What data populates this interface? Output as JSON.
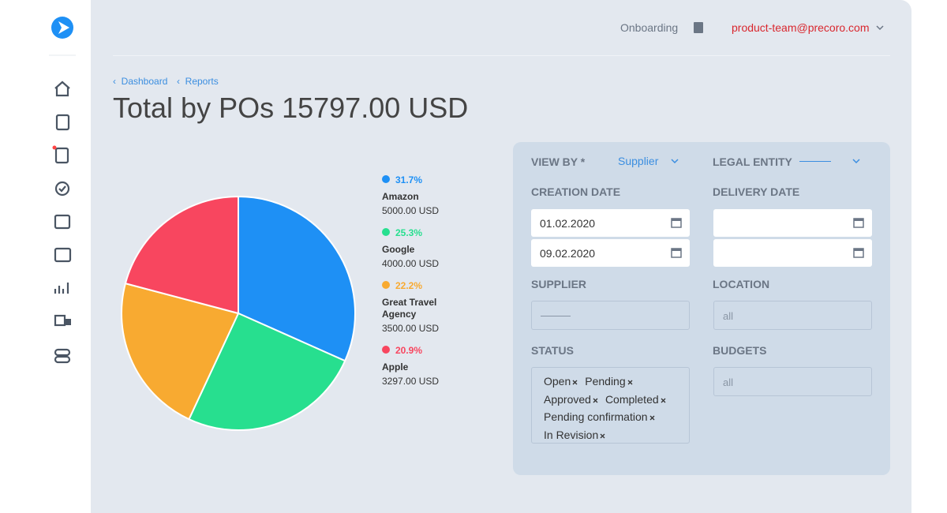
{
  "header": {
    "onboarding": "Onboarding",
    "user": "product-team@precoro.com"
  },
  "breadcrumbs": [
    "Dashboard",
    "Reports"
  ],
  "chart_data": {
    "type": "pie",
    "title": "Total by POs 15797.00 USD",
    "categories": [
      "Amazon",
      "Google",
      "Great Travel Agency",
      "Apple"
    ],
    "values": [
      31.7,
      25.3,
      22.2,
      20.9
    ],
    "value_labels": [
      "31.7%",
      "25.3%",
      "22.2%",
      "20.9%"
    ],
    "amount_labels": [
      "5000.00 USD",
      "4000.00 USD",
      "3500.00 USD",
      "3297.00 USD"
    ],
    "colors": [
      "#1e90f5",
      "#27df8f",
      "#f8aa31",
      "#f8465f"
    ]
  },
  "filters": {
    "view_by": {
      "label": "VIEW BY *",
      "value": "Supplier"
    },
    "legal_entity": {
      "label": "LEGAL ENTITY"
    },
    "creation_date": {
      "label": "CREATION DATE",
      "from": "01.02.2020",
      "to": "09.02.2020"
    },
    "delivery_date": {
      "label": "DELIVERY DATE"
    },
    "supplier": {
      "label": "SUPPLIER"
    },
    "location": {
      "label": "LOCATION",
      "value": "all"
    },
    "status": {
      "label": "STATUS",
      "tags": [
        "Open",
        "Pending",
        "Approved",
        "Completed",
        "Pending confirmation",
        "In Revision"
      ]
    },
    "budgets": {
      "label": "BUDGETS",
      "value": "all"
    }
  }
}
